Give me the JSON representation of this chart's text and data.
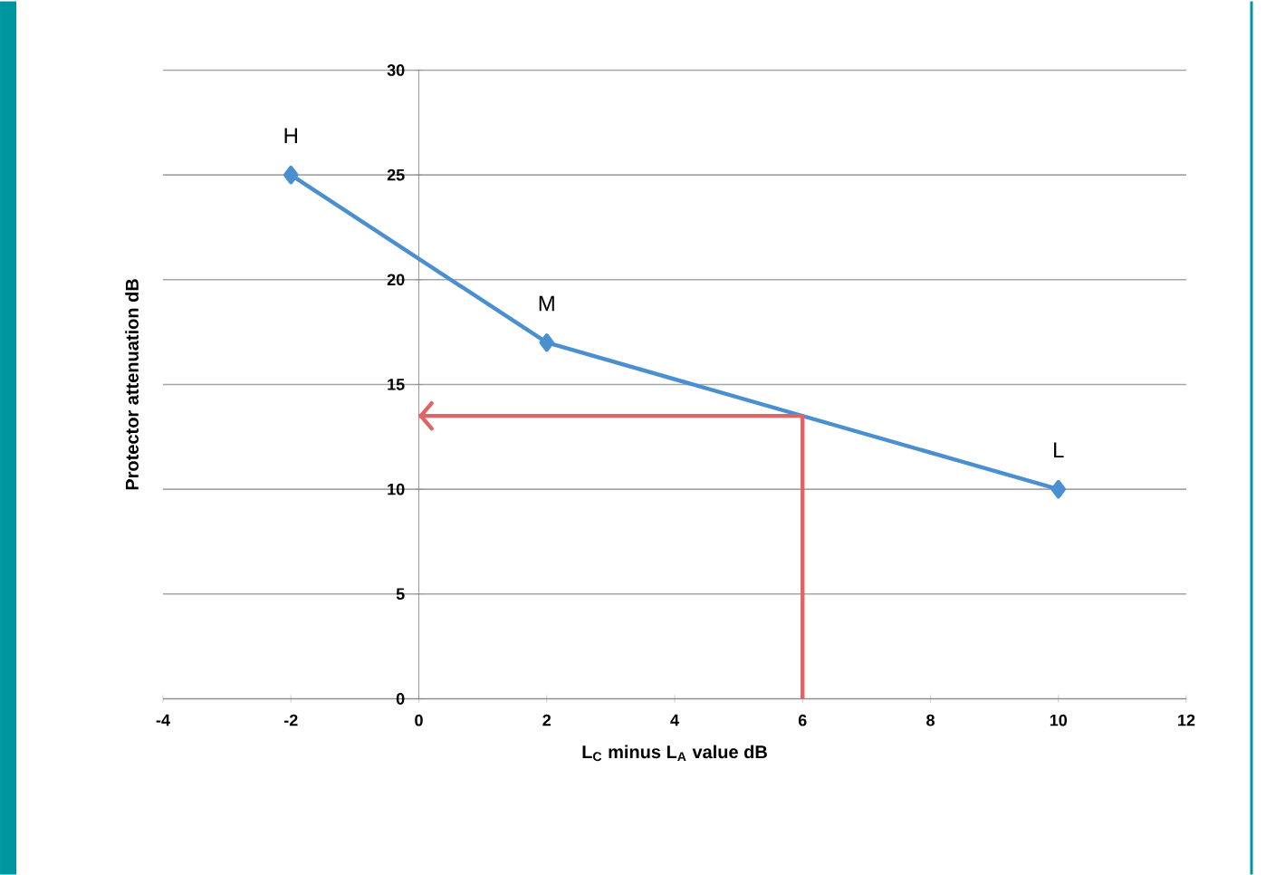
{
  "chart_data": {
    "type": "line",
    "xlabel": "L$_{C}$ minus L$_{A}$ value dB",
    "ylabel": "Protector attenuation dB",
    "xlim": [
      -4,
      12
    ],
    "xticks": [
      -4,
      -2,
      0,
      2,
      4,
      6,
      8,
      10,
      12
    ],
    "ylim": [
      0,
      30
    ],
    "yticks": [
      0,
      5,
      10,
      15,
      20,
      25,
      30
    ],
    "grid": "y",
    "marker": "diamond",
    "line_style": "solid",
    "series": [
      {
        "color": "#4a8fd0",
        "x": [
          -2,
          2,
          10
        ],
        "values": [
          25,
          17,
          10
        ]
      },
      {
        "color": "#e06464",
        "marker": "none",
        "x": [
          6,
          6,
          0
        ],
        "values": [
          0,
          13.5,
          13.5
        ]
      }
    ],
    "annotations": [
      {
        "text": "H",
        "x": -2,
        "y": 25
      },
      {
        "text": "M",
        "x": 2,
        "y": 17
      },
      {
        "text": "L",
        "x": 10,
        "y": 10
      }
    ]
  }
}
